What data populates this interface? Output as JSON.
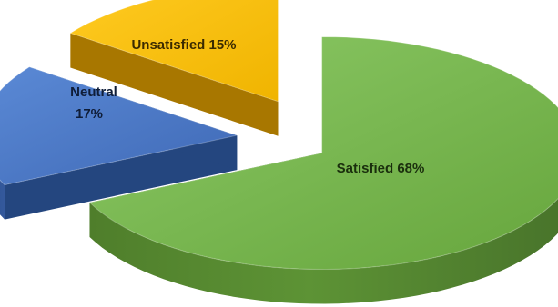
{
  "chart_data": {
    "type": "pie",
    "style": "3d-exploded",
    "categories": [
      "Satisfied",
      "Neutral",
      "Unsatisfied"
    ],
    "values": [
      68,
      17,
      15
    ],
    "unit": "%",
    "labels": {
      "satisfied": "Satisfied 68%",
      "neutral_line1": "Neutral",
      "neutral_line2": "17%",
      "unsatisfied": "Unsatisfied 15%"
    },
    "colors": {
      "satisfied": "#70AD47",
      "neutral": "#4472C4",
      "unsatisfied": "#FFC000"
    },
    "legend": "none",
    "title": ""
  }
}
